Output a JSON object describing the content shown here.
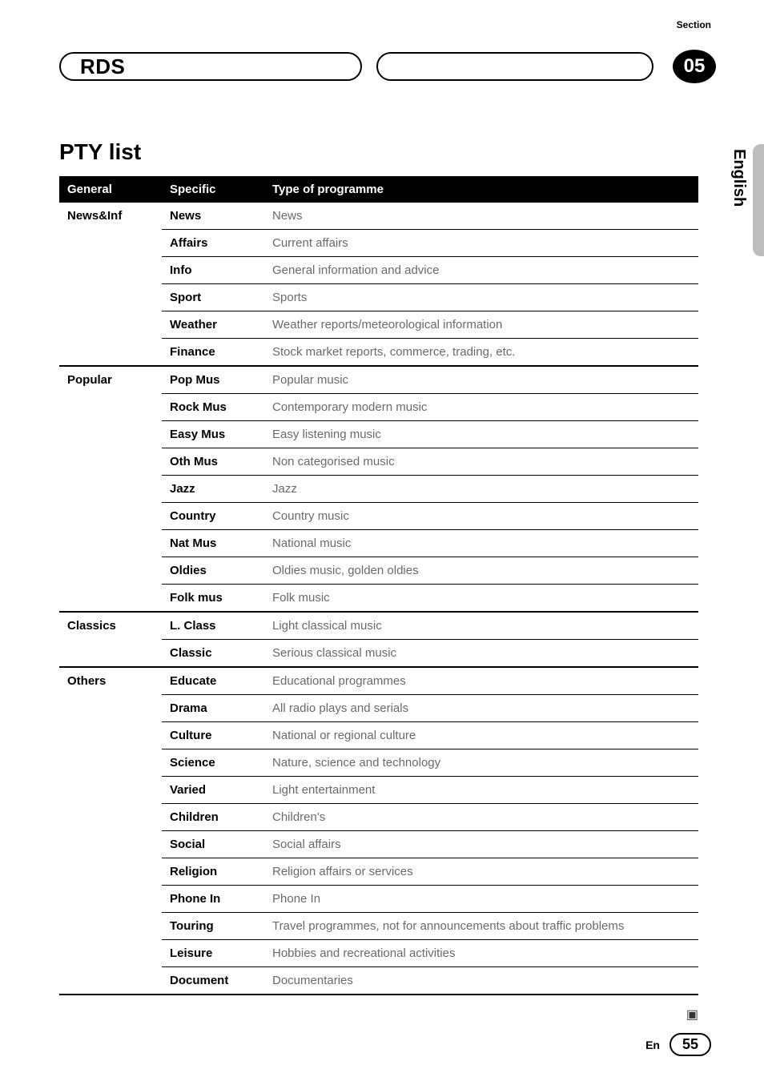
{
  "header": {
    "section_label": "Section",
    "left_pill": "RDS",
    "badge": "05",
    "language_tab": "English"
  },
  "title": "PTY list",
  "table": {
    "columns": [
      "General",
      "Specific",
      "Type of programme"
    ],
    "groups": [
      {
        "general": "News&Inf",
        "rows": [
          {
            "specific": "News",
            "type": "News"
          },
          {
            "specific": "Affairs",
            "type": "Current affairs"
          },
          {
            "specific": "Info",
            "type": "General information and advice"
          },
          {
            "specific": "Sport",
            "type": "Sports"
          },
          {
            "specific": "Weather",
            "type": "Weather reports/meteorological information"
          },
          {
            "specific": "Finance",
            "type": "Stock market reports, commerce, trading, etc."
          }
        ]
      },
      {
        "general": "Popular",
        "rows": [
          {
            "specific": "Pop Mus",
            "type": "Popular music"
          },
          {
            "specific": "Rock Mus",
            "type": "Contemporary modern music"
          },
          {
            "specific": "Easy Mus",
            "type": "Easy listening music"
          },
          {
            "specific": "Oth Mus",
            "type": "Non categorised music"
          },
          {
            "specific": "Jazz",
            "type": "Jazz"
          },
          {
            "specific": "Country",
            "type": "Country music"
          },
          {
            "specific": "Nat Mus",
            "type": "National music"
          },
          {
            "specific": "Oldies",
            "type": "Oldies music, golden oldies"
          },
          {
            "specific": "Folk mus",
            "type": "Folk music"
          }
        ]
      },
      {
        "general": "Classics",
        "rows": [
          {
            "specific": "L. Class",
            "type": "Light classical music"
          },
          {
            "specific": "Classic",
            "type": "Serious classical music"
          }
        ]
      },
      {
        "general": "Others",
        "rows": [
          {
            "specific": "Educate",
            "type": "Educational programmes"
          },
          {
            "specific": "Drama",
            "type": "All radio plays and serials"
          },
          {
            "specific": "Culture",
            "type": "National or regional culture"
          },
          {
            "specific": "Science",
            "type": "Nature, science and technology"
          },
          {
            "specific": "Varied",
            "type": "Light entertainment"
          },
          {
            "specific": "Children",
            "type": "Children's"
          },
          {
            "specific": "Social",
            "type": "Social affairs"
          },
          {
            "specific": "Religion",
            "type": "Religion affairs or services"
          },
          {
            "specific": "Phone In",
            "type": "Phone In"
          },
          {
            "specific": "Touring",
            "type": "Travel programmes, not for announcements about traffic problems"
          },
          {
            "specific": "Leisure",
            "type": "Hobbies and recreational activities"
          },
          {
            "specific": "Document",
            "type": "Documentaries"
          }
        ]
      }
    ]
  },
  "end_mark": "▣",
  "footer": {
    "lang": "En",
    "page": "55"
  }
}
